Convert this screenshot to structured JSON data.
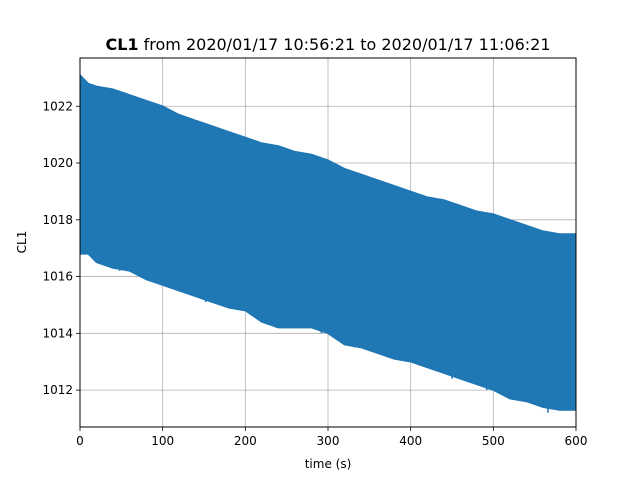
{
  "chart_data": {
    "type": "line",
    "title": {
      "bold_part": "CL1",
      "rest": " from 2020/01/17 10:56:21 to 2020/01/17 11:06:21"
    },
    "xlabel": "time (s)",
    "ylabel": "CL1",
    "xlim": [
      0,
      600
    ],
    "ylim": [
      1010.7,
      1023.7
    ],
    "x_ticks": [
      0,
      100,
      200,
      300,
      400,
      500,
      600
    ],
    "y_ticks": [
      1012,
      1014,
      1016,
      1018,
      1020,
      1022
    ],
    "grid": true,
    "legend": "none",
    "series": [
      {
        "color": "#1f77b4",
        "upper_envelope": {
          "x": [
            0,
            10,
            20,
            40,
            60,
            80,
            100,
            120,
            140,
            160,
            180,
            200,
            220,
            240,
            260,
            280,
            300,
            320,
            340,
            360,
            380,
            400,
            420,
            440,
            460,
            480,
            500,
            520,
            540,
            560,
            580,
            600
          ],
          "y": [
            1023.1,
            1022.8,
            1022.7,
            1022.6,
            1022.4,
            1022.2,
            1022.0,
            1021.7,
            1021.5,
            1021.3,
            1021.1,
            1020.9,
            1020.7,
            1020.6,
            1020.4,
            1020.3,
            1020.1,
            1019.8,
            1019.6,
            1019.4,
            1019.2,
            1019.0,
            1018.8,
            1018.7,
            1018.5,
            1018.3,
            1018.2,
            1018.0,
            1017.8,
            1017.6,
            1017.5,
            1017.5
          ]
        },
        "lower_envelope": {
          "x": [
            0,
            10,
            20,
            40,
            60,
            80,
            100,
            120,
            140,
            160,
            180,
            200,
            220,
            240,
            260,
            280,
            300,
            320,
            340,
            360,
            380,
            400,
            420,
            440,
            460,
            480,
            500,
            520,
            540,
            560,
            580,
            600
          ],
          "y": [
            1016.8,
            1016.8,
            1016.5,
            1016.3,
            1016.2,
            1015.9,
            1015.7,
            1015.5,
            1015.3,
            1015.1,
            1014.9,
            1014.8,
            1014.4,
            1014.2,
            1014.2,
            1014.2,
            1014.0,
            1013.6,
            1013.5,
            1013.3,
            1013.1,
            1013.0,
            1012.8,
            1012.6,
            1012.4,
            1012.2,
            1012.0,
            1011.7,
            1011.6,
            1011.4,
            1011.3,
            1011.3
          ]
        },
        "spikes_down": [
          {
            "x": 6,
            "y": 1016.9
          },
          {
            "x": 26,
            "y": 1016.8
          },
          {
            "x": 48,
            "y": 1016.2
          },
          {
            "x": 80,
            "y": 1015.9
          },
          {
            "x": 110,
            "y": 1015.6
          },
          {
            "x": 152,
            "y": 1015.1
          },
          {
            "x": 195,
            "y": 1014.8
          },
          {
            "x": 237,
            "y": 1014.2
          },
          {
            "x": 292,
            "y": 1014.0
          },
          {
            "x": 332,
            "y": 1013.5
          },
          {
            "x": 380,
            "y": 1013.1
          },
          {
            "x": 410,
            "y": 1012.9
          },
          {
            "x": 450,
            "y": 1012.4
          },
          {
            "x": 492,
            "y": 1012.0
          },
          {
            "x": 522,
            "y": 1011.7
          },
          {
            "x": 566,
            "y": 1011.2
          }
        ]
      }
    ]
  }
}
